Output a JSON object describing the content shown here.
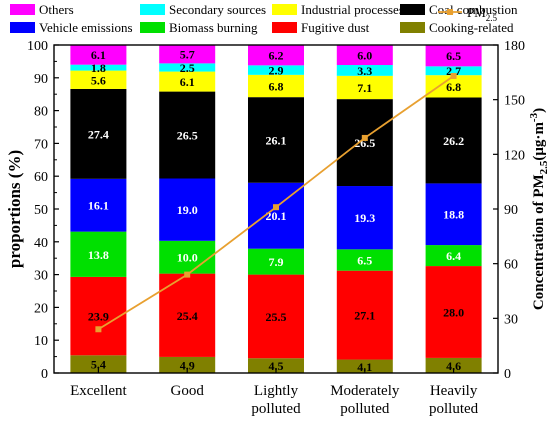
{
  "chart_data": {
    "type": "bar",
    "stacked": true,
    "categories": [
      "Excellent",
      "Good",
      "Lightly polluted",
      "Moderately polluted",
      "Heavily polluted"
    ],
    "category_lines": [
      [
        "Excellent"
      ],
      [
        "Good"
      ],
      [
        "Lightly",
        "polluted"
      ],
      [
        "Moderately",
        "polluted"
      ],
      [
        "Heavily",
        "polluted"
      ]
    ],
    "ylabel": "proportions (%)",
    "ylim": [
      0,
      100
    ],
    "yticks": [
      0,
      10,
      20,
      30,
      40,
      50,
      60,
      70,
      80,
      90,
      100
    ],
    "y2label": "Concentration of PM2.5(μg·m-3)",
    "y2label_parts": {
      "main": "Concentration of PM",
      "sub1": "2.5",
      "paren": "(μg·m",
      "sup": "-3",
      "close": ")"
    },
    "y2lim": [
      0,
      180
    ],
    "y2ticks": [
      0,
      30,
      60,
      90,
      120,
      150,
      180
    ],
    "legend_position": "top",
    "series": [
      {
        "name": "Cooking-related",
        "color": "#808000",
        "values": [
          5.4,
          4.9,
          4.5,
          4.1,
          4.6
        ]
      },
      {
        "name": "Fugitive dust",
        "color": "#ff0000",
        "values": [
          23.9,
          25.4,
          25.5,
          27.1,
          28.0
        ]
      },
      {
        "name": "Biomass burning",
        "color": "#00e000",
        "values": [
          13.8,
          10.0,
          7.9,
          6.5,
          6.4
        ]
      },
      {
        "name": "Vehicle emissions",
        "color": "#0000ff",
        "values": [
          16.1,
          19.0,
          20.1,
          19.3,
          18.8
        ]
      },
      {
        "name": "Coal combustion",
        "color": "#000000",
        "values": [
          27.4,
          26.5,
          26.1,
          26.5,
          26.2
        ]
      },
      {
        "name": "Industrial processes",
        "color": "#ffff00",
        "values": [
          5.6,
          6.1,
          6.8,
          7.1,
          6.8
        ]
      },
      {
        "name": "Secondary sources",
        "color": "#00ffff",
        "values": [
          1.8,
          2.5,
          2.9,
          3.3,
          2.7
        ]
      },
      {
        "name": "Others",
        "color": "#ff00ff",
        "values": [
          6.1,
          5.7,
          6.2,
          6.0,
          6.5
        ]
      }
    ],
    "line_series": {
      "name": "PM2.5",
      "name_main": "PM",
      "name_sub": "2.5",
      "color": "#e8a030",
      "axis": "right",
      "values": [
        24,
        54,
        91,
        129,
        163
      ]
    },
    "legend_order": [
      "Others",
      "Secondary sources",
      "Industrial processes",
      "Coal combustion",
      "Vehicle emissions",
      "Biomass burning",
      "Fugitive dust",
      "Cooking-related"
    ]
  }
}
